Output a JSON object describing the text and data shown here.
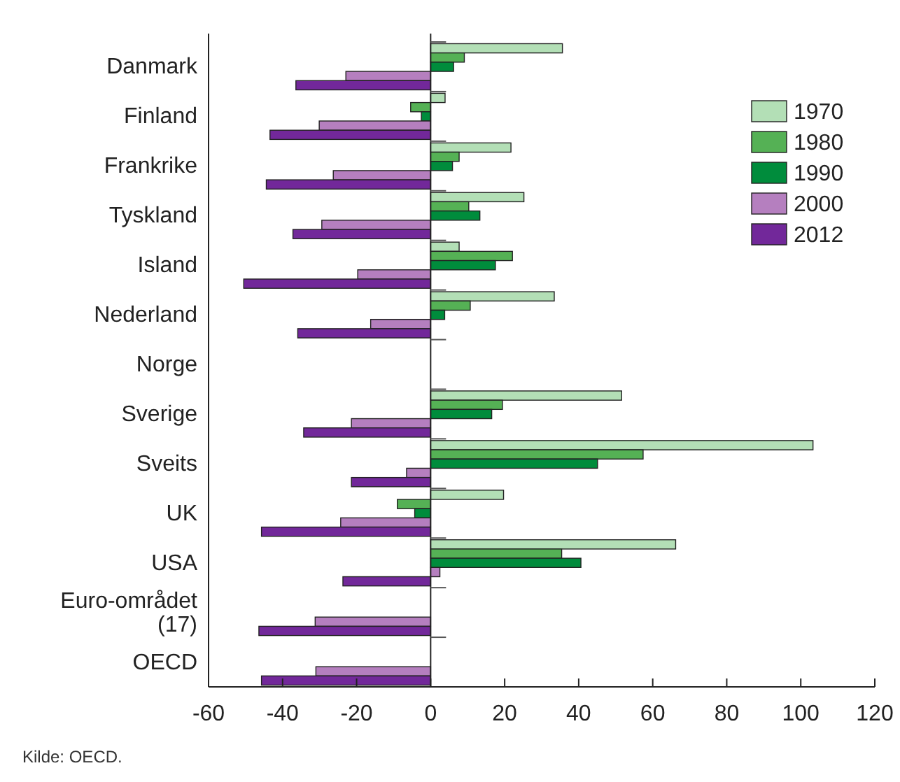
{
  "chart_data": {
    "type": "bar",
    "orientation": "horizontal",
    "categories": [
      "Danmark",
      "Finland",
      "Frankrike",
      "Tyskland",
      "Island",
      "Nederland",
      "Norge",
      "Sverige",
      "Sveits",
      "UK",
      "USA",
      "Euro-området (17)",
      "OECD"
    ],
    "series": [
      {
        "name": "1970",
        "color": "#b3dfb6",
        "values": [
          35.6,
          3.9,
          21.7,
          25.2,
          7.7,
          33.4,
          null,
          51.6,
          103.3,
          19.7,
          66.2,
          null,
          null
        ]
      },
      {
        "name": "1980",
        "color": "#55b155",
        "values": [
          9.1,
          -5.4,
          7.7,
          10.3,
          22.1,
          10.7,
          null,
          19.4,
          57.4,
          -9.0,
          35.4,
          null,
          null
        ]
      },
      {
        "name": "1990",
        "color": "#008c3c",
        "values": [
          6.2,
          -2.5,
          5.9,
          13.3,
          17.5,
          3.8,
          null,
          16.5,
          45.1,
          -4.3,
          40.6,
          null,
          null
        ]
      },
      {
        "name": "2000",
        "color": "#b57fbf",
        "values": [
          -22.9,
          -30.1,
          -26.3,
          -29.4,
          -19.7,
          -16.2,
          null,
          -21.4,
          -6.5,
          -24.3,
          2.5,
          -31.2,
          -31.0
        ]
      },
      {
        "name": "2012",
        "color": "#72289a",
        "values": [
          -36.4,
          -43.4,
          -44.4,
          -37.2,
          -50.5,
          -35.9,
          null,
          -34.3,
          -21.4,
          -45.7,
          -23.7,
          -46.4,
          -45.7
        ]
      }
    ],
    "xlim": [
      -60,
      120
    ],
    "xticks": [
      -60,
      -40,
      -20,
      0,
      20,
      40,
      60,
      80,
      100,
      120
    ],
    "legend": "top right",
    "annotations": [
      "Kilde: OECD."
    ]
  }
}
